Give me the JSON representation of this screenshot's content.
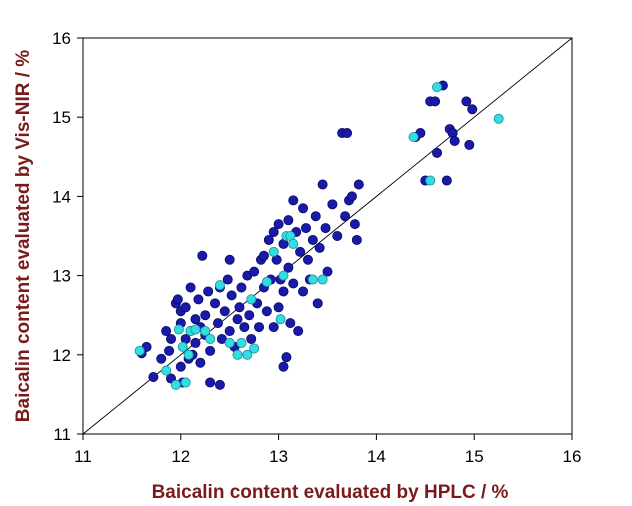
{
  "chart_data": {
    "type": "scatter",
    "xlabel": "Baicalin content evaluated by HPLC / %",
    "ylabel": "Baicalin content evaluated by Vis-NIR / %",
    "xlim": [
      11,
      16
    ],
    "ylim": [
      11,
      16
    ],
    "xticks": [
      "11",
      "12",
      "13",
      "14",
      "15",
      "16"
    ],
    "yticks": [
      "11",
      "12",
      "13",
      "14",
      "15",
      "16"
    ],
    "reference_line": {
      "from": [
        11,
        11
      ],
      "to": [
        16,
        16
      ]
    },
    "grid": false,
    "colors": {
      "series1": "#1a1aa8",
      "series2": "#33dde0",
      "axis_title": "#7a1a1a"
    },
    "series": [
      {
        "color": "#1a1aa8",
        "points": [
          [
            11.65,
            12.1
          ],
          [
            11.6,
            12.02
          ],
          [
            11.72,
            11.72
          ],
          [
            11.8,
            11.95
          ],
          [
            11.85,
            12.3
          ],
          [
            11.88,
            12.05
          ],
          [
            11.9,
            12.2
          ],
          [
            11.9,
            11.7
          ],
          [
            11.95,
            12.65
          ],
          [
            11.97,
            12.7
          ],
          [
            12.0,
            12.55
          ],
          [
            12.0,
            12.4
          ],
          [
            12.0,
            11.85
          ],
          [
            12.02,
            11.65
          ],
          [
            12.05,
            12.6
          ],
          [
            12.05,
            12.2
          ],
          [
            12.08,
            11.95
          ],
          [
            12.1,
            12.85
          ],
          [
            12.1,
            12.3
          ],
          [
            12.12,
            12.0
          ],
          [
            12.15,
            12.45
          ],
          [
            12.15,
            12.15
          ],
          [
            12.18,
            12.7
          ],
          [
            12.2,
            12.35
          ],
          [
            12.2,
            11.9
          ],
          [
            12.22,
            13.25
          ],
          [
            12.25,
            12.5
          ],
          [
            12.25,
            12.25
          ],
          [
            12.28,
            12.8
          ],
          [
            12.3,
            12.05
          ],
          [
            12.3,
            11.65
          ],
          [
            12.35,
            12.65
          ],
          [
            12.38,
            12.4
          ],
          [
            12.4,
            12.85
          ],
          [
            12.4,
            11.62
          ],
          [
            12.42,
            12.2
          ],
          [
            12.45,
            12.55
          ],
          [
            12.48,
            12.95
          ],
          [
            12.5,
            13.2
          ],
          [
            12.5,
            12.3
          ],
          [
            12.52,
            12.75
          ],
          [
            12.55,
            12.1
          ],
          [
            12.58,
            12.45
          ],
          [
            12.6,
            12.6
          ],
          [
            12.62,
            12.85
          ],
          [
            12.65,
            12.35
          ],
          [
            12.68,
            13.0
          ],
          [
            12.7,
            12.5
          ],
          [
            12.72,
            12.2
          ],
          [
            12.75,
            13.05
          ],
          [
            12.78,
            12.65
          ],
          [
            12.8,
            12.35
          ],
          [
            12.82,
            13.2
          ],
          [
            12.85,
            12.85
          ],
          [
            12.85,
            13.25
          ],
          [
            12.88,
            12.55
          ],
          [
            12.9,
            13.45
          ],
          [
            12.92,
            12.95
          ],
          [
            12.95,
            13.55
          ],
          [
            12.95,
            12.35
          ],
          [
            12.98,
            13.2
          ],
          [
            13.0,
            12.6
          ],
          [
            13.0,
            13.65
          ],
          [
            13.02,
            12.95
          ],
          [
            13.05,
            13.4
          ],
          [
            13.05,
            12.8
          ],
          [
            13.05,
            11.85
          ],
          [
            13.08,
            11.97
          ],
          [
            13.1,
            13.7
          ],
          [
            13.1,
            13.1
          ],
          [
            13.12,
            12.4
          ],
          [
            13.15,
            12.9
          ],
          [
            13.15,
            13.95
          ],
          [
            13.18,
            13.55
          ],
          [
            13.2,
            12.3
          ],
          [
            13.22,
            13.3
          ],
          [
            13.25,
            12.8
          ],
          [
            13.25,
            13.85
          ],
          [
            13.28,
            13.6
          ],
          [
            13.3,
            13.2
          ],
          [
            13.32,
            12.95
          ],
          [
            13.35,
            13.45
          ],
          [
            13.38,
            13.75
          ],
          [
            13.4,
            12.65
          ],
          [
            13.42,
            13.35
          ],
          [
            13.45,
            14.15
          ],
          [
            13.48,
            13.6
          ],
          [
            13.5,
            13.05
          ],
          [
            13.55,
            13.9
          ],
          [
            13.6,
            13.5
          ],
          [
            13.65,
            14.8
          ],
          [
            13.7,
            14.8
          ],
          [
            13.68,
            13.75
          ],
          [
            13.72,
            13.95
          ],
          [
            13.75,
            14.0
          ],
          [
            13.78,
            13.65
          ],
          [
            13.8,
            13.45
          ],
          [
            13.82,
            14.15
          ],
          [
            14.4,
            14.75
          ],
          [
            14.45,
            14.8
          ],
          [
            14.5,
            14.2
          ],
          [
            14.55,
            15.2
          ],
          [
            14.6,
            15.2
          ],
          [
            14.62,
            14.55
          ],
          [
            14.68,
            15.4
          ],
          [
            14.72,
            14.2
          ],
          [
            14.75,
            14.85
          ],
          [
            14.78,
            14.8
          ],
          [
            14.8,
            14.7
          ],
          [
            14.92,
            15.2
          ],
          [
            14.95,
            14.65
          ],
          [
            14.98,
            15.1
          ]
        ]
      },
      {
        "color": "#33dde0",
        "points": [
          [
            11.58,
            12.05
          ],
          [
            11.85,
            11.8
          ],
          [
            11.95,
            11.62
          ],
          [
            11.98,
            12.32
          ],
          [
            12.02,
            12.1
          ],
          [
            12.05,
            11.65
          ],
          [
            12.08,
            12.0
          ],
          [
            12.1,
            12.3
          ],
          [
            12.15,
            12.32
          ],
          [
            12.25,
            12.3
          ],
          [
            12.3,
            12.2
          ],
          [
            12.4,
            12.88
          ],
          [
            12.5,
            12.15
          ],
          [
            12.58,
            12.0
          ],
          [
            12.62,
            12.15
          ],
          [
            12.68,
            12.0
          ],
          [
            12.72,
            12.7
          ],
          [
            12.75,
            12.08
          ],
          [
            12.88,
            12.92
          ],
          [
            12.95,
            13.3
          ],
          [
            13.02,
            12.45
          ],
          [
            13.05,
            13.0
          ],
          [
            13.08,
            13.5
          ],
          [
            13.12,
            13.5
          ],
          [
            13.15,
            13.4
          ],
          [
            13.35,
            12.95
          ],
          [
            13.45,
            12.95
          ],
          [
            14.38,
            14.75
          ],
          [
            14.55,
            14.2
          ],
          [
            14.62,
            15.38
          ],
          [
            15.25,
            14.98
          ]
        ]
      }
    ]
  }
}
